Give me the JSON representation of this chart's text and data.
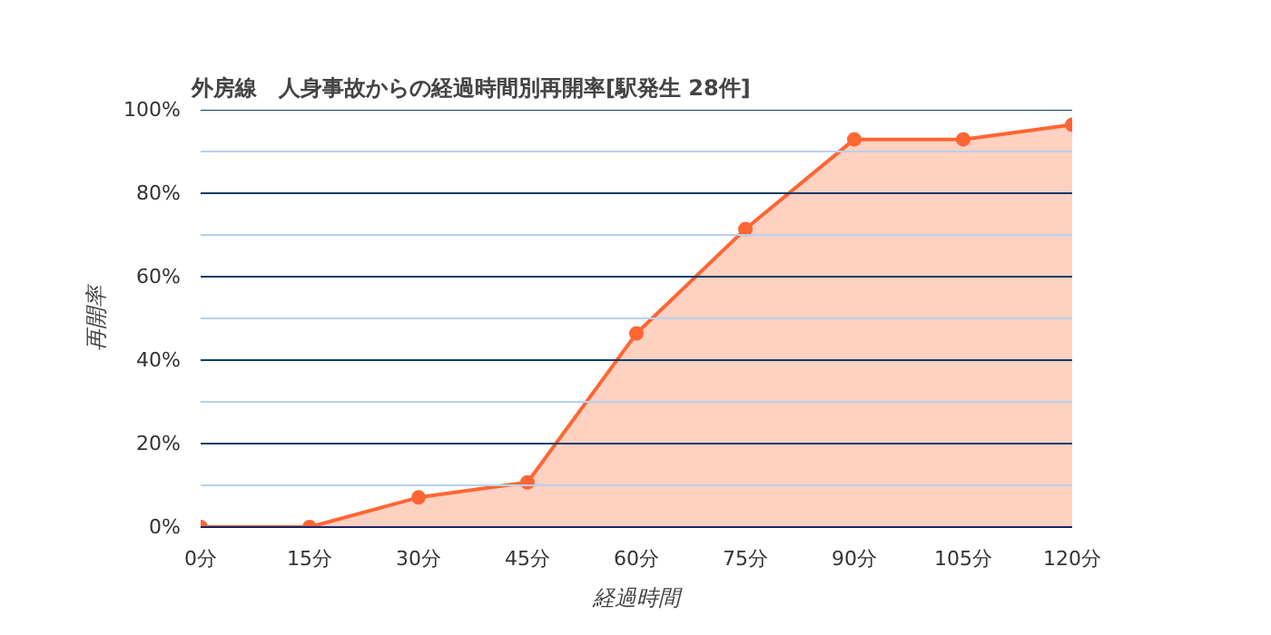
{
  "chart_data": {
    "type": "area",
    "title": "外房線　人身事故からの経過時間別再開率[駅発生 28件]",
    "xlabel": "経過時間",
    "ylabel": "再開率",
    "x": [
      0,
      15,
      30,
      45,
      60,
      75,
      90,
      105,
      120
    ],
    "series": [
      {
        "color": "#ff6633",
        "values": [
          0,
          0,
          7.1,
          10.7,
          46.4,
          71.4,
          92.9,
          92.9,
          96.4
        ]
      }
    ],
    "xlim": [
      0,
      120
    ],
    "ylim": [
      0,
      100
    ],
    "xticks": [
      {
        "value": 0,
        "label": "0分"
      },
      {
        "value": 15,
        "label": "15分"
      },
      {
        "value": 30,
        "label": "30分"
      },
      {
        "value": 45,
        "label": "45分"
      },
      {
        "value": 60,
        "label": "60分"
      },
      {
        "value": 75,
        "label": "75分"
      },
      {
        "value": 90,
        "label": "90分"
      },
      {
        "value": 105,
        "label": "105分"
      },
      {
        "value": 120,
        "label": "120分"
      }
    ],
    "yticks": [
      {
        "value": 0,
        "label": "0%"
      },
      {
        "value": 10,
        "label": null
      },
      {
        "value": 20,
        "label": "20%"
      },
      {
        "value": 30,
        "label": null
      },
      {
        "value": 40,
        "label": "40%"
      },
      {
        "value": 50,
        "label": null
      },
      {
        "value": 60,
        "label": "60%"
      },
      {
        "value": 70,
        "label": null
      },
      {
        "value": 80,
        "label": "80%"
      },
      {
        "value": 90,
        "label": null
      },
      {
        "value": 100,
        "label": "100%"
      }
    ],
    "grid": "y",
    "marker": "circle",
    "line_style": "solid"
  }
}
